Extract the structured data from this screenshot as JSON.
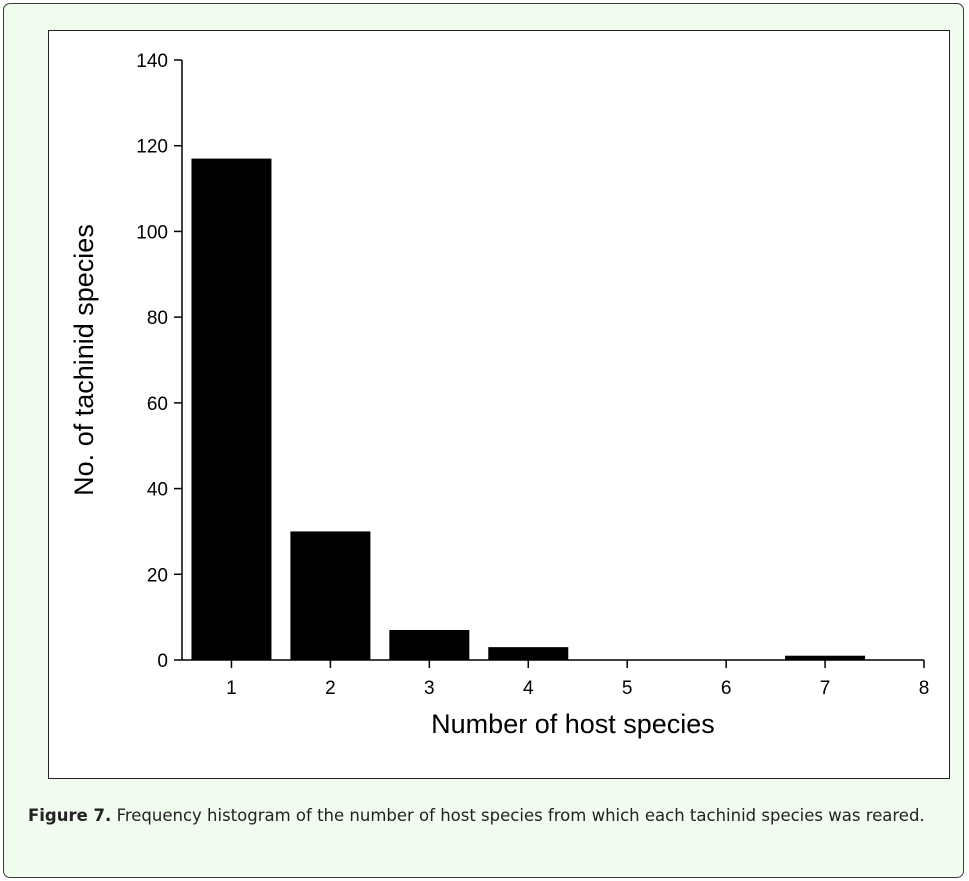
{
  "chart_data": {
    "type": "bar",
    "xlabel": "Number of host species",
    "ylabel": "No. of tachinid species",
    "categories": [
      "1",
      "2",
      "3",
      "4",
      "5",
      "6",
      "7"
    ],
    "values": [
      117,
      30,
      7,
      3,
      0,
      0,
      1
    ],
    "x_ticks": [
      "1",
      "2",
      "3",
      "4",
      "5",
      "6",
      "7",
      "8"
    ],
    "y_ticks": [
      "0",
      "20",
      "40",
      "60",
      "80",
      "100",
      "120",
      "140"
    ],
    "xlim": [
      0.5,
      8
    ],
    "ylim": [
      0,
      140
    ],
    "grid": false,
    "bar_color": "#000000"
  },
  "caption": {
    "label": "Figure 7.",
    "text": "Frequency histogram of the number of host species from which each tachinid species was reared."
  }
}
